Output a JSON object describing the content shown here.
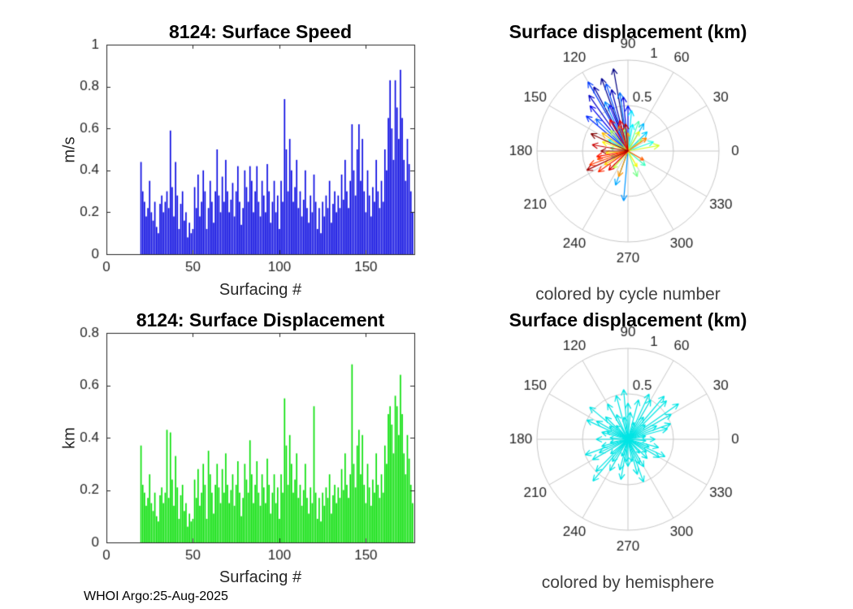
{
  "figure": {
    "footer": "WHOI Argo:25-Aug-2025",
    "background": "#FFFFFF",
    "text_color": "#262626",
    "grid_color": "#C9C9C9",
    "caption_color": "#3F3F3F"
  },
  "chart_data": [
    {
      "id": "speed_bar",
      "type": "bar",
      "title": "8124: Surface Speed",
      "xlabel": "Surfacing #",
      "ylabel": "m/s",
      "xlim": [
        0,
        178
      ],
      "ylim": [
        0,
        1
      ],
      "xticks": [
        0,
        50,
        100,
        150
      ],
      "yticks": [
        0,
        0.2,
        0.4,
        0.6,
        0.8,
        1
      ],
      "bar_color": "#0000E0",
      "x_start": 20,
      "values": [
        0.44,
        0.3,
        0.25,
        0.18,
        0.22,
        0.35,
        0.2,
        0.16,
        0.25,
        0.13,
        0.1,
        0.24,
        0.28,
        0.2,
        0.25,
        0.3,
        0.22,
        0.59,
        0.32,
        0.18,
        0.44,
        0.28,
        0.12,
        0.24,
        0.3,
        0.16,
        0.2,
        0.08,
        0.15,
        0.1,
        0.12,
        0.32,
        0.22,
        0.38,
        0.18,
        0.25,
        0.4,
        0.3,
        0.12,
        0.22,
        0.35,
        0.25,
        0.15,
        0.3,
        0.5,
        0.28,
        0.2,
        0.37,
        0.25,
        0.45,
        0.3,
        0.2,
        0.26,
        0.34,
        0.18,
        0.3,
        0.42,
        0.25,
        0.14,
        0.22,
        0.4,
        0.32,
        0.25,
        0.42,
        0.35,
        0.2,
        0.3,
        0.42,
        0.25,
        0.18,
        0.35,
        0.28,
        0.2,
        0.43,
        0.3,
        0.15,
        0.25,
        0.35,
        0.2,
        0.28,
        0.12,
        0.35,
        0.25,
        0.74,
        0.5,
        0.3,
        0.55,
        0.4,
        0.25,
        0.32,
        0.45,
        0.22,
        0.3,
        0.18,
        0.26,
        0.4,
        0.22,
        0.15,
        0.28,
        0.2,
        0.38,
        0.25,
        0.12,
        0.22,
        0.1,
        0.25,
        0.18,
        0.28,
        0.22,
        0.35,
        0.15,
        0.24,
        0.3,
        0.2,
        0.28,
        0.22,
        0.38,
        0.26,
        0.45,
        0.3,
        0.22,
        0.35,
        0.62,
        0.4,
        0.28,
        0.5,
        0.62,
        0.35,
        0.55,
        0.3,
        0.2,
        0.4,
        0.28,
        0.18,
        0.32,
        0.25,
        0.45,
        0.3,
        0.22,
        0.35,
        0.25,
        0.5,
        0.4,
        0.65,
        0.83,
        0.6,
        0.45,
        0.83,
        0.7,
        0.55,
        0.88,
        0.65,
        0.45,
        0.35,
        0.55,
        0.43,
        0.3,
        0.2
      ]
    },
    {
      "id": "cycle_polar",
      "type": "polar_quiver",
      "title": "Surface displacement (km)",
      "caption": "colored by cycle number",
      "rmax": 1,
      "rticks": [
        0.5,
        1
      ],
      "rtick_labels": [
        "0.5",
        "1"
      ],
      "angle_ticks": [
        0,
        30,
        60,
        90,
        120,
        150,
        180,
        210,
        240,
        270,
        300,
        330
      ],
      "colormap": "jet",
      "arrows": [
        [
          100,
          0.92
        ],
        [
          110,
          0.85
        ],
        [
          118,
          0.8
        ],
        [
          105,
          0.7
        ],
        [
          125,
          0.75
        ],
        [
          95,
          0.6
        ],
        [
          130,
          0.65
        ],
        [
          112,
          0.55
        ],
        [
          90,
          0.5
        ],
        [
          140,
          0.6
        ],
        [
          120,
          0.88
        ],
        [
          108,
          0.78
        ],
        [
          135,
          0.5
        ],
        [
          98,
          0.65
        ],
        [
          115,
          0.6
        ],
        [
          265,
          0.55
        ],
        [
          250,
          0.4
        ],
        [
          60,
          0.35
        ],
        [
          45,
          0.3
        ],
        [
          85,
          0.45
        ],
        [
          80,
          0.3
        ],
        [
          150,
          0.25
        ],
        [
          20,
          0.3
        ],
        [
          200,
          0.2
        ],
        [
          320,
          0.25
        ],
        [
          70,
          0.35
        ],
        [
          170,
          0.2
        ],
        [
          290,
          0.3
        ],
        [
          100,
          0.25
        ],
        [
          40,
          0.2
        ],
        [
          130,
          0.3
        ],
        [
          230,
          0.25
        ],
        [
          10,
          0.35
        ],
        [
          60,
          0.25
        ],
        [
          300,
          0.2
        ],
        [
          160,
          0.3
        ],
        [
          185,
          0.25
        ],
        [
          210,
          0.3
        ],
        [
          145,
          0.35
        ],
        [
          90,
          0.2
        ],
        [
          250,
          0.3
        ],
        [
          35,
          0.25
        ],
        [
          110,
          0.3
        ],
        [
          330,
          0.2
        ],
        [
          195,
          0.35
        ],
        [
          200,
          0.45
        ],
        [
          215,
          0.4
        ],
        [
          190,
          0.35
        ],
        [
          120,
          0.4
        ],
        [
          105,
          0.35
        ],
        [
          225,
          0.3
        ],
        [
          170,
          0.4
        ],
        [
          95,
          0.3
        ],
        [
          205,
          0.5
        ],
        [
          180,
          0.3
        ],
        [
          155,
          0.45
        ]
      ]
    },
    {
      "id": "displacement_bar",
      "type": "bar",
      "title": "8124: Surface Displacement",
      "xlabel": "Surfacing #",
      "ylabel": "km",
      "xlim": [
        0,
        178
      ],
      "ylim": [
        0,
        0.8
      ],
      "xticks": [
        0,
        50,
        100,
        150
      ],
      "yticks": [
        0,
        0.2,
        0.4,
        0.6,
        0.8
      ],
      "bar_color": "#00DF00",
      "x_start": 20,
      "values": [
        0.37,
        0.22,
        0.19,
        0.14,
        0.17,
        0.26,
        0.15,
        0.12,
        0.19,
        0.1,
        0.08,
        0.18,
        0.21,
        0.15,
        0.19,
        0.43,
        0.17,
        0.42,
        0.24,
        0.14,
        0.33,
        0.21,
        0.09,
        0.18,
        0.22,
        0.12,
        0.15,
        0.06,
        0.11,
        0.08,
        0.09,
        0.24,
        0.17,
        0.28,
        0.14,
        0.19,
        0.3,
        0.22,
        0.09,
        0.35,
        0.26,
        0.19,
        0.11,
        0.22,
        0.3,
        0.21,
        0.15,
        0.28,
        0.19,
        0.34,
        0.22,
        0.15,
        0.2,
        0.26,
        0.14,
        0.22,
        0.31,
        0.19,
        0.1,
        0.17,
        0.3,
        0.24,
        0.19,
        0.39,
        0.26,
        0.15,
        0.22,
        0.31,
        0.19,
        0.14,
        0.26,
        0.21,
        0.15,
        0.32,
        0.22,
        0.11,
        0.19,
        0.26,
        0.15,
        0.21,
        0.09,
        0.26,
        0.19,
        0.55,
        0.37,
        0.22,
        0.41,
        0.3,
        0.19,
        0.24,
        0.34,
        0.17,
        0.22,
        0.14,
        0.2,
        0.3,
        0.17,
        0.11,
        0.21,
        0.15,
        0.52,
        0.19,
        0.09,
        0.17,
        0.08,
        0.19,
        0.14,
        0.21,
        0.17,
        0.26,
        0.11,
        0.18,
        0.22,
        0.15,
        0.21,
        0.17,
        0.28,
        0.2,
        0.34,
        0.22,
        0.17,
        0.26,
        0.68,
        0.3,
        0.21,
        0.37,
        0.43,
        0.26,
        0.41,
        0.22,
        0.15,
        0.3,
        0.21,
        0.14,
        0.24,
        0.19,
        0.34,
        0.22,
        0.17,
        0.26,
        0.19,
        0.37,
        0.3,
        0.49,
        0.52,
        0.45,
        0.34,
        0.56,
        0.52,
        0.41,
        0.64,
        0.49,
        0.34,
        0.26,
        0.41,
        0.32,
        0.22,
        0.15
      ]
    },
    {
      "id": "hemisphere_polar",
      "type": "polar_quiver",
      "title": "Surface displacement (km)",
      "caption": "colored by hemisphere",
      "rmax": 1,
      "rticks": [
        0.5,
        1
      ],
      "rtick_labels": [
        "0.5",
        "1"
      ],
      "angle_ticks": [
        0,
        30,
        60,
        90,
        120,
        150,
        180,
        210,
        240,
        270,
        300,
        330
      ],
      "arrow_color": "#00E5E5",
      "arrows": [
        [
          30,
          0.55
        ],
        [
          45,
          0.6
        ],
        [
          60,
          0.5
        ],
        [
          75,
          0.45
        ],
        [
          90,
          0.4
        ],
        [
          105,
          0.5
        ],
        [
          120,
          0.45
        ],
        [
          135,
          0.35
        ],
        [
          150,
          0.4
        ],
        [
          165,
          0.3
        ],
        [
          180,
          0.35
        ],
        [
          195,
          0.3
        ],
        [
          210,
          0.45
        ],
        [
          225,
          0.5
        ],
        [
          240,
          0.4
        ],
        [
          255,
          0.35
        ],
        [
          270,
          0.3
        ],
        [
          285,
          0.4
        ],
        [
          300,
          0.35
        ],
        [
          315,
          0.3
        ],
        [
          330,
          0.4
        ],
        [
          345,
          0.35
        ],
        [
          0,
          0.3
        ],
        [
          15,
          0.45
        ],
        [
          10,
          0.2
        ],
        [
          40,
          0.25
        ],
        [
          70,
          0.2
        ],
        [
          100,
          0.25
        ],
        [
          130,
          0.2
        ],
        [
          160,
          0.25
        ],
        [
          190,
          0.2
        ],
        [
          220,
          0.25
        ],
        [
          250,
          0.2
        ],
        [
          280,
          0.25
        ],
        [
          310,
          0.2
        ],
        [
          340,
          0.25
        ],
        [
          55,
          0.3
        ],
        [
          85,
          0.3
        ],
        [
          115,
          0.3
        ],
        [
          145,
          0.25
        ],
        [
          175,
          0.2
        ],
        [
          205,
          0.35
        ],
        [
          235,
          0.3
        ],
        [
          265,
          0.25
        ],
        [
          295,
          0.3
        ],
        [
          325,
          0.25
        ],
        [
          355,
          0.2
        ],
        [
          25,
          0.35
        ],
        [
          35,
          0.68
        ],
        [
          50,
          0.62
        ],
        [
          140,
          0.55
        ],
        [
          155,
          0.5
        ],
        [
          230,
          0.6
        ],
        [
          65,
          0.55
        ],
        [
          20,
          0.5
        ],
        [
          95,
          0.55
        ],
        [
          200,
          0.5
        ],
        [
          260,
          0.45
        ],
        [
          290,
          0.5
        ],
        [
          335,
          0.45
        ]
      ]
    }
  ]
}
